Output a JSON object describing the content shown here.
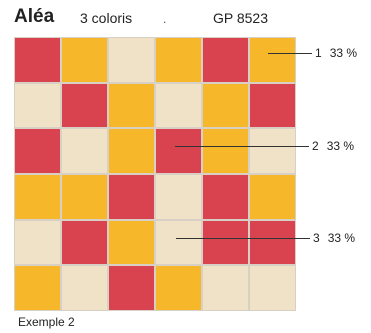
{
  "header": {
    "title": "Aléa",
    "subtitle": "3 coloris",
    "dot": ".",
    "code": "GP 8523"
  },
  "colors": {
    "red": "#d8434f",
    "yellow": "#f6b82a",
    "beige": "#efe2c6"
  },
  "grid": [
    [
      "red",
      "yellow",
      "beige",
      "yellow",
      "red",
      "yellow"
    ],
    [
      "beige",
      "red",
      "yellow",
      "beige",
      "yellow",
      "red"
    ],
    [
      "red",
      "beige",
      "yellow",
      "red",
      "yellow",
      "beige"
    ],
    [
      "yellow",
      "yellow",
      "red",
      "beige",
      "red",
      "yellow"
    ],
    [
      "beige",
      "red",
      "yellow",
      "beige",
      "red",
      "red"
    ],
    [
      "yellow",
      "beige",
      "red",
      "yellow",
      "beige",
      "beige"
    ]
  ],
  "legend": [
    {
      "number": "1",
      "percent": "33 %"
    },
    {
      "number": "2",
      "percent": "33 %"
    },
    {
      "number": "3",
      "percent": "33 %"
    }
  ],
  "caption": "Exemple 2"
}
